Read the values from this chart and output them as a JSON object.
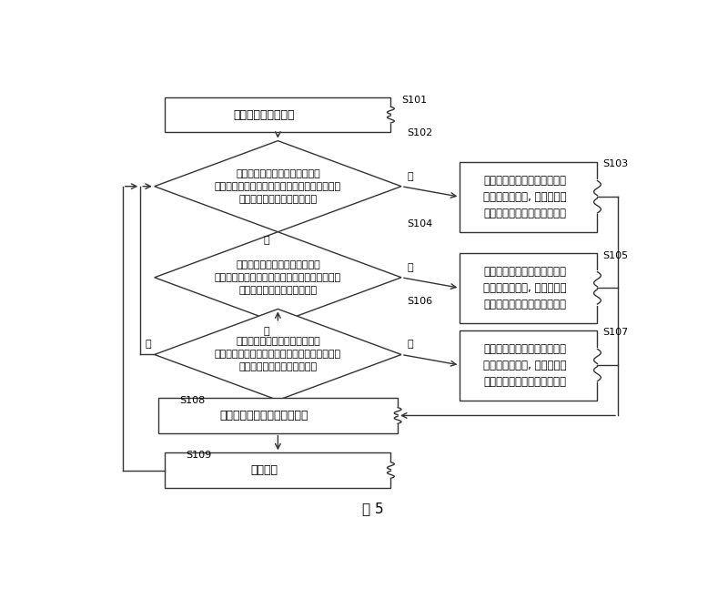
{
  "background_color": "#ffffff",
  "title": "图 5",
  "nodes": {
    "S101": {
      "label": "S101",
      "text": "所述加热辊开始工作"
    },
    "S102": {
      "label": "S102",
      "text": "所述控制模块进行采样对比，判\n断第一温区的所述热电阻测得的实时温度数值是\n否小于预存的该温区目标温度"
    },
    "S103": {
      "label": "S103",
      "text": "断开第二、第三区的感应加热\n线圈与电源模块, 接通第一温\n区的感应加热线圈与电源模块"
    },
    "S104": {
      "label": "S104",
      "text": "所述控制模块进行采样对比，判\n断第二温区的所述热电阻测得的实时温度数值是\n否小于预存的该温区目标温度"
    },
    "S105": {
      "label": "S105",
      "text": "断开第一、第三区的感应加热\n线圈与电源模块, 接通第二温\n区的感应加热线圈与电源模块"
    },
    "S106": {
      "label": "S106",
      "text": "所述控制模块进行采样对比，判\n断第三温区的所述热电阻测得的实时温度数值是\n否小于预存的该温区目标温度"
    },
    "S107": {
      "label": "S107",
      "text": "断开第一、第二区的感应加热\n线圈与电源模块, 接通第三温\n区的感应加热线圈与电源模块"
    },
    "S108": {
      "label": "S108",
      "text": "对被接通的温区进行电磁加热"
    },
    "S109": {
      "label": "S109",
      "text": "加热结束"
    }
  },
  "yes_label": "是",
  "no_label": "否",
  "font_size_main": 9,
  "font_size_diamond": 8,
  "font_size_right": 8.5,
  "font_size_label": 8,
  "font_size_title": 11
}
